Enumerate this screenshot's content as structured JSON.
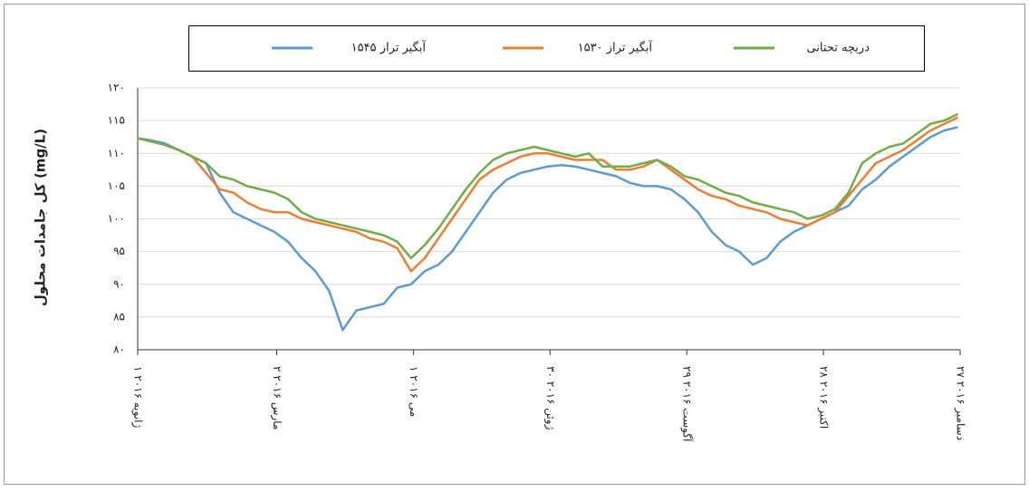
{
  "chart_data": {
    "type": "line",
    "y_label": "کل جامدات محلول (mg/L)",
    "x": [
      "2016-01-01",
      "2016-01-07",
      "2016-01-13",
      "2016-01-19",
      "2016-01-25",
      "2016-01-31",
      "2016-02-06",
      "2016-02-12",
      "2016-02-18",
      "2016-02-24",
      "2016-03-01",
      "2016-03-07",
      "2016-03-13",
      "2016-03-19",
      "2016-03-25",
      "2016-03-31",
      "2016-04-06",
      "2016-04-12",
      "2016-04-18",
      "2016-04-24",
      "2016-04-30",
      "2016-05-06",
      "2016-05-12",
      "2016-05-18",
      "2016-05-24",
      "2016-05-30",
      "2016-06-05",
      "2016-06-11",
      "2016-06-17",
      "2016-06-23",
      "2016-06-29",
      "2016-07-05",
      "2016-07-11",
      "2016-07-17",
      "2016-07-23",
      "2016-07-29",
      "2016-08-04",
      "2016-08-10",
      "2016-08-16",
      "2016-08-22",
      "2016-08-28",
      "2016-09-03",
      "2016-09-09",
      "2016-09-15",
      "2016-09-21",
      "2016-09-27",
      "2016-10-03",
      "2016-10-09",
      "2016-10-15",
      "2016-10-21",
      "2016-10-27",
      "2016-11-02",
      "2016-11-08",
      "2016-11-14",
      "2016-11-20",
      "2016-11-26",
      "2016-12-02",
      "2016-12-08",
      "2016-12-14",
      "2016-12-20",
      "2016-12-26"
    ],
    "series": [
      {
        "name": "آبگیر تراز ۱۵۴۵",
        "color": "#5b9bd5",
        "values": [
          112.3,
          112,
          111.5,
          110.5,
          109.5,
          108.5,
          104,
          101,
          100,
          99,
          98,
          96.5,
          94,
          92,
          89,
          83,
          86,
          86.5,
          87,
          89.5,
          90,
          92,
          93,
          95,
          98,
          101,
          104,
          106,
          107,
          107.5,
          108,
          108.2,
          108,
          107.5,
          107,
          106.5,
          105.5,
          105,
          105,
          104.5,
          103,
          101,
          98,
          96,
          95,
          93,
          94,
          96.5,
          98,
          99,
          100,
          101,
          102,
          104.5,
          106,
          108,
          109.5,
          111,
          112.5,
          113.5,
          114
        ]
      },
      {
        "name": "آبگیر تراز ۱۵۳۰",
        "color": "#ed7d31",
        "values": [
          112.3,
          111.8,
          111.3,
          110.5,
          109.5,
          107,
          104.5,
          104,
          102.5,
          101.5,
          101,
          101,
          100,
          99.5,
          99,
          98.5,
          98,
          97,
          96.5,
          95.5,
          92,
          94,
          97,
          100,
          103,
          106,
          107.5,
          108.5,
          109.5,
          110,
          110,
          109.5,
          109,
          109,
          109,
          107.5,
          107.5,
          108,
          109,
          107.5,
          106,
          104.5,
          103.5,
          103,
          102,
          101.5,
          101,
          100,
          99.5,
          99,
          100,
          101,
          103.5,
          106,
          108.5,
          109.5,
          110.5,
          112,
          113.5,
          114.5,
          115.5
        ]
      },
      {
        "name": "دریچه تحتانی",
        "color": "#70ad47",
        "values": [
          112.3,
          111.8,
          111.3,
          110.5,
          109.5,
          108.5,
          106.5,
          106,
          105,
          104.5,
          104,
          103,
          101,
          100,
          99.5,
          99,
          98.5,
          98,
          97.5,
          96.5,
          94,
          96,
          98.5,
          101.5,
          104.5,
          107,
          109,
          110,
          110.5,
          111,
          110.5,
          110,
          109.5,
          110,
          108,
          108,
          108,
          108.5,
          109,
          108,
          106.5,
          106,
          105,
          104,
          103.5,
          102.5,
          102,
          101.5,
          101,
          100,
          100.5,
          101.5,
          104,
          108.5,
          110,
          111,
          111.5,
          113,
          114.5,
          115,
          116
        ]
      }
    ],
    "xlim": [
      "2016-01-01",
      "2016-12-27"
    ],
    "xticks": [
      {
        "value": "2016-01-01",
        "label": "۱ ژانویه ۲۰۱۶"
      },
      {
        "value": "2016-03-02",
        "label": "۲ مارس ۲۰۱۶"
      },
      {
        "value": "2016-05-01",
        "label": "۱ می ۲۰۱۶"
      },
      {
        "value": "2016-06-30",
        "label": "۳۰ ژوئن ۲۰۱۶"
      },
      {
        "value": "2016-08-29",
        "label": "۲۹ آگوست ۲۰۱۶"
      },
      {
        "value": "2016-10-28",
        "label": "۲۸ اکتبر ۲۰۱۶"
      },
      {
        "value": "2016-12-27",
        "label": "۲۷ دسامبر ۲۰۱۶"
      }
    ],
    "ylim": [
      80,
      120
    ],
    "yticks": [
      {
        "value": 80,
        "label": "۸۰"
      },
      {
        "value": 85,
        "label": "۸۵"
      },
      {
        "value": 90,
        "label": "۹۰"
      },
      {
        "value": 95,
        "label": "۹۵"
      },
      {
        "value": 100,
        "label": "۱۰۰"
      },
      {
        "value": 105,
        "label": "۱۰۵"
      },
      {
        "value": 110,
        "label": "۱۱۰"
      },
      {
        "value": 115,
        "label": "۱۱۵"
      },
      {
        "value": 120,
        "label": "۱۲۰"
      }
    ],
    "grid": true,
    "legend": "top"
  }
}
